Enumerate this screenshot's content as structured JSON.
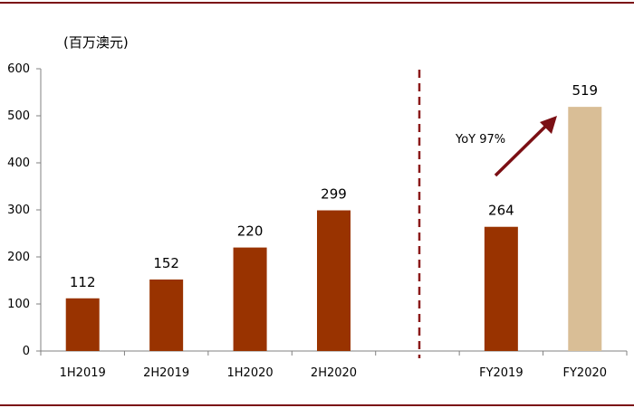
{
  "chart_data": {
    "type": "bar",
    "unit_label": "(百万澳元)",
    "categories": [
      "1H2019",
      "2H2019",
      "1H2020",
      "2H2020",
      "",
      "FY2019",
      "FY2020"
    ],
    "values": [
      112,
      152,
      220,
      299,
      null,
      264,
      519
    ],
    "data_labels": [
      "112",
      "152",
      "220",
      "299",
      "",
      "264",
      "519"
    ],
    "yticks": [
      "0",
      "100",
      "200",
      "300",
      "400",
      "500",
      "600"
    ],
    "ylim": [
      0,
      600
    ],
    "annotation": "YoY 97%",
    "colors": {
      "half_year_bar": "#993300",
      "fy2019_bar": "#993300",
      "fy2020_bar": "#D9BE96",
      "arrow": "#7B0F14",
      "divider": "#8B1A1A",
      "frame_line": "#7B0F14"
    }
  }
}
